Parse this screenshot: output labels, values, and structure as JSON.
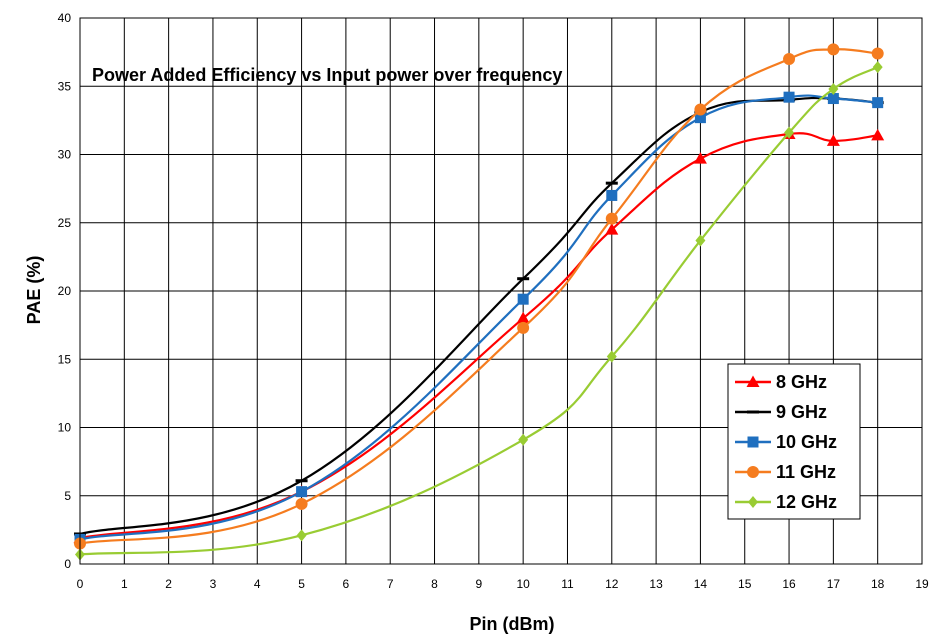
{
  "chart_data": {
    "type": "line",
    "title": "Power Added Efficiency vs Input power over frequency",
    "xlabel": "Pin (dBm)",
    "ylabel": "PAE (%)",
    "xlim": [
      0,
      19
    ],
    "ylim": [
      0,
      40
    ],
    "x_ticks": [
      "0",
      "1",
      "2",
      "3",
      "4",
      "5",
      "6",
      "7",
      "8",
      "9",
      "10",
      "11",
      "12",
      "13",
      "14",
      "15",
      "16",
      "17",
      "18",
      "19"
    ],
    "y_ticks": [
      "0",
      "5",
      "10",
      "15",
      "20",
      "25",
      "30",
      "35",
      "40"
    ],
    "grid": true,
    "legend_position": "bottom-right",
    "series": [
      {
        "name": "8 GHz",
        "color": "#ff0000",
        "marker": "triangle",
        "x": [
          0,
          5,
          10,
          12,
          14,
          16,
          17,
          18
        ],
        "y": [
          1.9,
          5.3,
          18.0,
          24.5,
          29.7,
          31.5,
          31.0,
          31.4
        ]
      },
      {
        "name": "9 GHz",
        "color": "#000000",
        "marker": "dash",
        "x": [
          0,
          5,
          10,
          12,
          14,
          16,
          17,
          18
        ],
        "y": [
          2.2,
          6.1,
          20.9,
          27.9,
          33.1,
          34.0,
          34.1,
          33.8
        ]
      },
      {
        "name": "10 GHz",
        "color": "#1f6fbf",
        "marker": "square",
        "x": [
          0,
          5,
          10,
          12,
          14,
          16,
          17,
          18
        ],
        "y": [
          1.8,
          5.3,
          19.4,
          27.0,
          32.7,
          34.2,
          34.1,
          33.8
        ]
      },
      {
        "name": "11 GHz",
        "color": "#f57c1f",
        "marker": "circle",
        "x": [
          0,
          5,
          10,
          12,
          14,
          16,
          17,
          18
        ],
        "y": [
          1.5,
          4.4,
          17.3,
          25.3,
          33.3,
          37.0,
          37.7,
          37.4
        ]
      },
      {
        "name": "12 GHz",
        "color": "#99cc33",
        "marker": "diamond",
        "x": [
          0,
          5,
          10,
          12,
          14,
          16,
          17,
          18
        ],
        "y": [
          0.7,
          2.1,
          9.1,
          15.2,
          23.7,
          31.6,
          34.8,
          36.4
        ]
      }
    ]
  }
}
